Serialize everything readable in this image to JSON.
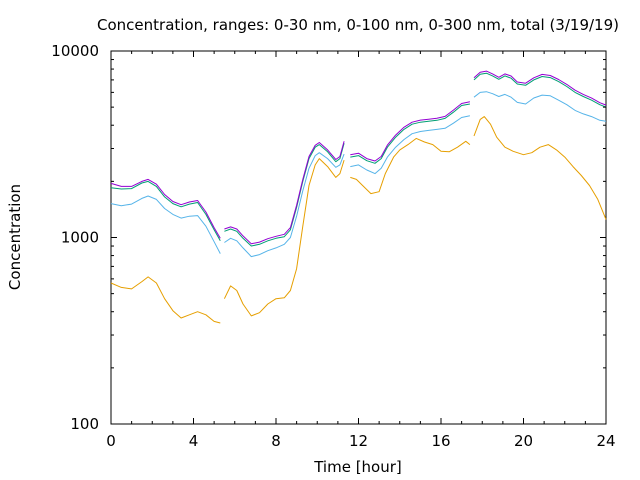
{
  "chart_data": {
    "type": "line",
    "title": "Concentration, ranges: 0-30 nm, 0-100 nm, 0-300 nm, total (3/19/19)",
    "xlabel": "Time [hour]",
    "ylabel": "Concentration",
    "xlim": [
      0,
      24
    ],
    "ylim": [
      100,
      10000
    ],
    "yscale": "log",
    "grid": false,
    "legend": "none",
    "xticks": [
      0,
      4,
      8,
      12,
      16,
      20,
      24
    ],
    "xtick_labels": [
      "0",
      "4",
      "8",
      "12",
      "16",
      "20",
      "24"
    ],
    "yticks": [
      100,
      1000,
      10000
    ],
    "ytick_labels": [
      "100",
      "1000",
      "10000"
    ],
    "series": [
      {
        "color": "#e69f00",
        "segments": [
          [
            [
              0,
              570
            ],
            [
              0.5,
              540
            ],
            [
              1,
              530
            ],
            [
              1.5,
              580
            ],
            [
              1.8,
              615
            ],
            [
              2.2,
              570
            ],
            [
              2.6,
              470
            ],
            [
              3,
              405
            ],
            [
              3.4,
              370
            ],
            [
              3.8,
              385
            ],
            [
              4.2,
              400
            ],
            [
              4.6,
              385
            ],
            [
              5,
              355
            ],
            [
              5.3,
              348
            ]
          ],
          [
            [
              5.5,
              470
            ],
            [
              5.8,
              550
            ],
            [
              6.1,
              520
            ],
            [
              6.4,
              440
            ],
            [
              6.8,
              380
            ],
            [
              7.2,
              395
            ],
            [
              7.6,
              440
            ],
            [
              8,
              470
            ],
            [
              8.4,
              475
            ],
            [
              8.7,
              520
            ],
            [
              9,
              680
            ],
            [
              9.3,
              1150
            ],
            [
              9.6,
              1900
            ],
            [
              9.9,
              2450
            ],
            [
              10.1,
              2650
            ],
            [
              10.5,
              2400
            ],
            [
              10.9,
              2100
            ],
            [
              11.1,
              2200
            ],
            [
              11.3,
              2600
            ]
          ],
          [
            [
              11.6,
              2100
            ],
            [
              11.9,
              2050
            ],
            [
              12.2,
              1900
            ],
            [
              12.6,
              1720
            ],
            [
              13,
              1760
            ],
            [
              13.3,
              2200
            ],
            [
              13.7,
              2700
            ],
            [
              14,
              2950
            ],
            [
              14.4,
              3150
            ],
            [
              14.8,
              3400
            ],
            [
              15.2,
              3250
            ],
            [
              15.6,
              3150
            ],
            [
              16,
              2900
            ],
            [
              16.4,
              2880
            ],
            [
              16.8,
              3050
            ],
            [
              17.2,
              3280
            ],
            [
              17.4,
              3150
            ]
          ],
          [
            [
              17.6,
              3500
            ],
            [
              17.9,
              4300
            ],
            [
              18.1,
              4450
            ],
            [
              18.4,
              4050
            ],
            [
              18.7,
              3450
            ],
            [
              19.1,
              3050
            ],
            [
              19.5,
              2900
            ],
            [
              20,
              2780
            ],
            [
              20.4,
              2850
            ],
            [
              20.8,
              3050
            ],
            [
              21.2,
              3150
            ],
            [
              21.6,
              2950
            ],
            [
              22,
              2700
            ],
            [
              22.4,
              2400
            ],
            [
              22.8,
              2150
            ],
            [
              23.2,
              1900
            ],
            [
              23.6,
              1600
            ],
            [
              24,
              1250
            ]
          ]
        ]
      },
      {
        "color": "#56b4e9",
        "segments": [
          [
            [
              0,
              1520
            ],
            [
              0.5,
              1480
            ],
            [
              1,
              1510
            ],
            [
              1.5,
              1620
            ],
            [
              1.8,
              1670
            ],
            [
              2.2,
              1600
            ],
            [
              2.6,
              1430
            ],
            [
              3,
              1330
            ],
            [
              3.4,
              1270
            ],
            [
              3.8,
              1300
            ],
            [
              4.2,
              1310
            ],
            [
              4.6,
              1150
            ],
            [
              5,
              950
            ],
            [
              5.3,
              820
            ]
          ],
          [
            [
              5.5,
              940
            ],
            [
              5.8,
              990
            ],
            [
              6.1,
              960
            ],
            [
              6.4,
              880
            ],
            [
              6.8,
              790
            ],
            [
              7.2,
              810
            ],
            [
              7.6,
              850
            ],
            [
              8,
              880
            ],
            [
              8.4,
              920
            ],
            [
              8.7,
              1000
            ],
            [
              9,
              1300
            ],
            [
              9.3,
              1780
            ],
            [
              9.6,
              2350
            ],
            [
              9.9,
              2750
            ],
            [
              10.1,
              2850
            ],
            [
              10.5,
              2650
            ],
            [
              10.9,
              2380
            ],
            [
              11.1,
              2450
            ],
            [
              11.3,
              2800
            ]
          ],
          [
            [
              11.6,
              2400
            ],
            [
              12,
              2450
            ],
            [
              12.4,
              2300
            ],
            [
              12.8,
              2200
            ],
            [
              13.1,
              2350
            ],
            [
              13.4,
              2700
            ],
            [
              13.8,
              3050
            ],
            [
              14.2,
              3350
            ],
            [
              14.6,
              3600
            ],
            [
              15,
              3700
            ],
            [
              15.4,
              3750
            ],
            [
              15.8,
              3800
            ],
            [
              16.2,
              3850
            ],
            [
              16.6,
              4100
            ],
            [
              17,
              4400
            ],
            [
              17.4,
              4500
            ]
          ],
          [
            [
              17.6,
              5650
            ],
            [
              17.9,
              6000
            ],
            [
              18.2,
              6050
            ],
            [
              18.5,
              5900
            ],
            [
              18.8,
              5700
            ],
            [
              19.1,
              5850
            ],
            [
              19.4,
              5650
            ],
            [
              19.7,
              5300
            ],
            [
              20.1,
              5200
            ],
            [
              20.5,
              5600
            ],
            [
              20.9,
              5800
            ],
            [
              21.3,
              5750
            ],
            [
              21.7,
              5450
            ],
            [
              22.1,
              5150
            ],
            [
              22.5,
              4800
            ],
            [
              22.9,
              4600
            ],
            [
              23.3,
              4450
            ],
            [
              23.7,
              4250
            ],
            [
              24,
              4200
            ]
          ]
        ]
      },
      {
        "color": "#009e73",
        "segments": [
          [
            [
              0,
              1850
            ],
            [
              0.5,
              1820
            ],
            [
              1,
              1830
            ],
            [
              1.5,
              1960
            ],
            [
              1.8,
              2000
            ],
            [
              2.2,
              1880
            ],
            [
              2.6,
              1650
            ],
            [
              3,
              1520
            ],
            [
              3.4,
              1460
            ],
            [
              3.8,
              1510
            ],
            [
              4.2,
              1540
            ],
            [
              4.6,
              1330
            ],
            [
              5,
              1100
            ],
            [
              5.3,
              960
            ]
          ],
          [
            [
              5.5,
              1080
            ],
            [
              5.8,
              1110
            ],
            [
              6.1,
              1080
            ],
            [
              6.4,
              990
            ],
            [
              6.8,
              900
            ],
            [
              7.2,
              920
            ],
            [
              7.6,
              960
            ],
            [
              8,
              990
            ],
            [
              8.4,
              1010
            ],
            [
              8.7,
              1100
            ],
            [
              9,
              1450
            ],
            [
              9.3,
              2000
            ],
            [
              9.6,
              2650
            ],
            [
              9.9,
              3050
            ],
            [
              10.1,
              3150
            ],
            [
              10.5,
              2880
            ],
            [
              10.9,
              2550
            ],
            [
              11.1,
              2650
            ],
            [
              11.3,
              3200
            ]
          ],
          [
            [
              11.6,
              2700
            ],
            [
              12,
              2750
            ],
            [
              12.4,
              2580
            ],
            [
              12.8,
              2500
            ],
            [
              13.1,
              2650
            ],
            [
              13.4,
              3050
            ],
            [
              13.8,
              3450
            ],
            [
              14.2,
              3800
            ],
            [
              14.6,
              4050
            ],
            [
              15,
              4150
            ],
            [
              15.4,
              4200
            ],
            [
              15.8,
              4250
            ],
            [
              16.2,
              4350
            ],
            [
              16.6,
              4700
            ],
            [
              17,
              5100
            ],
            [
              17.4,
              5200
            ]
          ],
          [
            [
              17.6,
              7000
            ],
            [
              17.9,
              7500
            ],
            [
              18.2,
              7600
            ],
            [
              18.5,
              7350
            ],
            [
              18.8,
              7050
            ],
            [
              19.1,
              7350
            ],
            [
              19.4,
              7150
            ],
            [
              19.7,
              6650
            ],
            [
              20.1,
              6550
            ],
            [
              20.5,
              7000
            ],
            [
              20.9,
              7300
            ],
            [
              21.3,
              7200
            ],
            [
              21.7,
              6850
            ],
            [
              22.1,
              6450
            ],
            [
              22.5,
              6000
            ],
            [
              22.9,
              5700
            ],
            [
              23.3,
              5450
            ],
            [
              23.7,
              5150
            ],
            [
              24,
              5000
            ]
          ]
        ]
      },
      {
        "color": "#9400d3",
        "segments": [
          [
            [
              0,
              1950
            ],
            [
              0.5,
              1880
            ],
            [
              1,
              1880
            ],
            [
              1.5,
              2000
            ],
            [
              1.8,
              2050
            ],
            [
              2.2,
              1930
            ],
            [
              2.6,
              1700
            ],
            [
              3,
              1560
            ],
            [
              3.4,
              1500
            ],
            [
              3.8,
              1550
            ],
            [
              4.2,
              1580
            ],
            [
              4.6,
              1370
            ],
            [
              5,
              1130
            ],
            [
              5.3,
              990
            ]
          ],
          [
            [
              5.5,
              1110
            ],
            [
              5.8,
              1140
            ],
            [
              6.1,
              1110
            ],
            [
              6.4,
              1020
            ],
            [
              6.8,
              925
            ],
            [
              7.2,
              945
            ],
            [
              7.6,
              985
            ],
            [
              8,
              1015
            ],
            [
              8.4,
              1040
            ],
            [
              8.7,
              1130
            ],
            [
              9,
              1490
            ],
            [
              9.3,
              2050
            ],
            [
              9.6,
              2720
            ],
            [
              9.9,
              3120
            ],
            [
              10.1,
              3230
            ],
            [
              10.5,
              2950
            ],
            [
              10.9,
              2620
            ],
            [
              11.1,
              2720
            ],
            [
              11.3,
              3280
            ]
          ],
          [
            [
              11.6,
              2780
            ],
            [
              12,
              2830
            ],
            [
              12.4,
              2650
            ],
            [
              12.8,
              2570
            ],
            [
              13.1,
              2720
            ],
            [
              13.4,
              3130
            ],
            [
              13.8,
              3540
            ],
            [
              14.2,
              3900
            ],
            [
              14.6,
              4150
            ],
            [
              15,
              4260
            ],
            [
              15.4,
              4310
            ],
            [
              15.8,
              4360
            ],
            [
              16.2,
              4460
            ],
            [
              16.6,
              4820
            ],
            [
              17,
              5230
            ],
            [
              17.4,
              5340
            ]
          ],
          [
            [
              17.6,
              7180
            ],
            [
              17.9,
              7700
            ],
            [
              18.2,
              7800
            ],
            [
              18.5,
              7540
            ],
            [
              18.8,
              7230
            ],
            [
              19.1,
              7540
            ],
            [
              19.4,
              7340
            ],
            [
              19.7,
              6820
            ],
            [
              20.1,
              6720
            ],
            [
              20.5,
              7180
            ],
            [
              20.9,
              7490
            ],
            [
              21.3,
              7390
            ],
            [
              21.7,
              7030
            ],
            [
              22.1,
              6620
            ],
            [
              22.5,
              6160
            ],
            [
              22.9,
              5850
            ],
            [
              23.3,
              5590
            ],
            [
              23.7,
              5280
            ],
            [
              24,
              5130
            ]
          ]
        ]
      }
    ]
  }
}
